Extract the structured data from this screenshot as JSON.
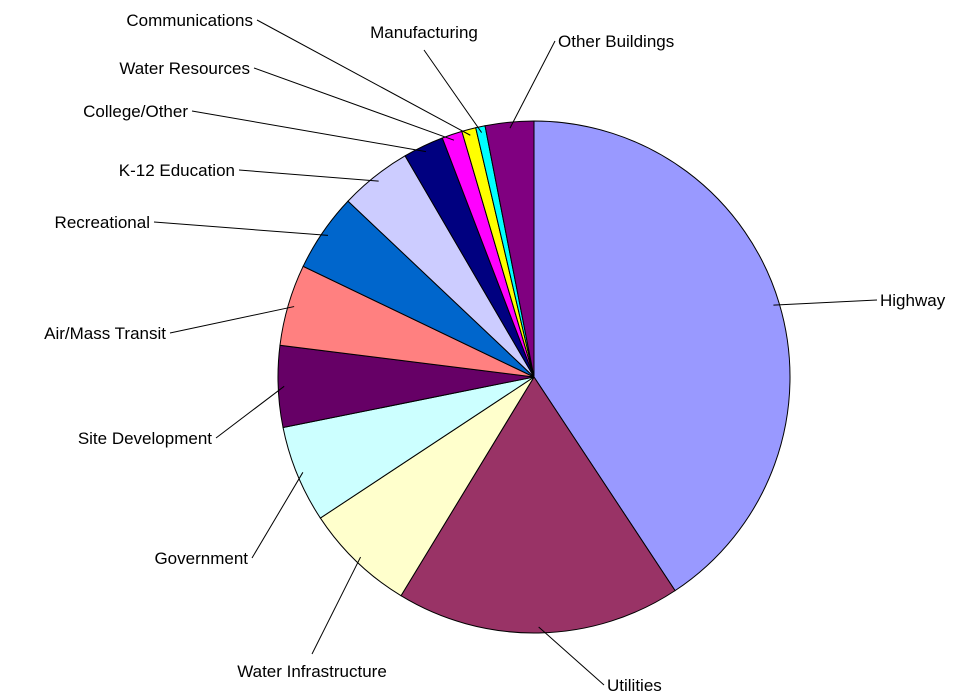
{
  "chart_data": {
    "type": "pie",
    "title": "",
    "start_angle_deg": 90,
    "direction": "clockwise",
    "legend": "none",
    "slices": [
      {
        "label": "Highway",
        "value": 41.2,
        "color": "#9999ff"
      },
      {
        "label": "Utilities",
        "value": 18.2,
        "color": "#993366"
      },
      {
        "label": "Water Infrastructure",
        "value": 7.1,
        "color": "#ffffcc"
      },
      {
        "label": "Government",
        "value": 6.2,
        "color": "#ccffff"
      },
      {
        "label": "Site Development",
        "value": 5.2,
        "color": "#660066"
      },
      {
        "label": "Air/Mass Transit",
        "value": 5.2,
        "color": "#ff8080"
      },
      {
        "label": "Recreational",
        "value": 5.0,
        "color": "#0066cc"
      },
      {
        "label": "K-12 Education",
        "value": 4.6,
        "color": "#ccccff"
      },
      {
        "label": "College/Other",
        "value": 2.6,
        "color": "#000080"
      },
      {
        "label": "Water Resources",
        "value": 1.3,
        "color": "#ff00ff"
      },
      {
        "label": "Communications",
        "value": 0.9,
        "color": "#ffff00"
      },
      {
        "label": "Manufacturing",
        "value": 0.6,
        "color": "#00ffff"
      },
      {
        "label": "Other Buildings",
        "value": 3.1,
        "color": "#800080"
      }
    ]
  }
}
